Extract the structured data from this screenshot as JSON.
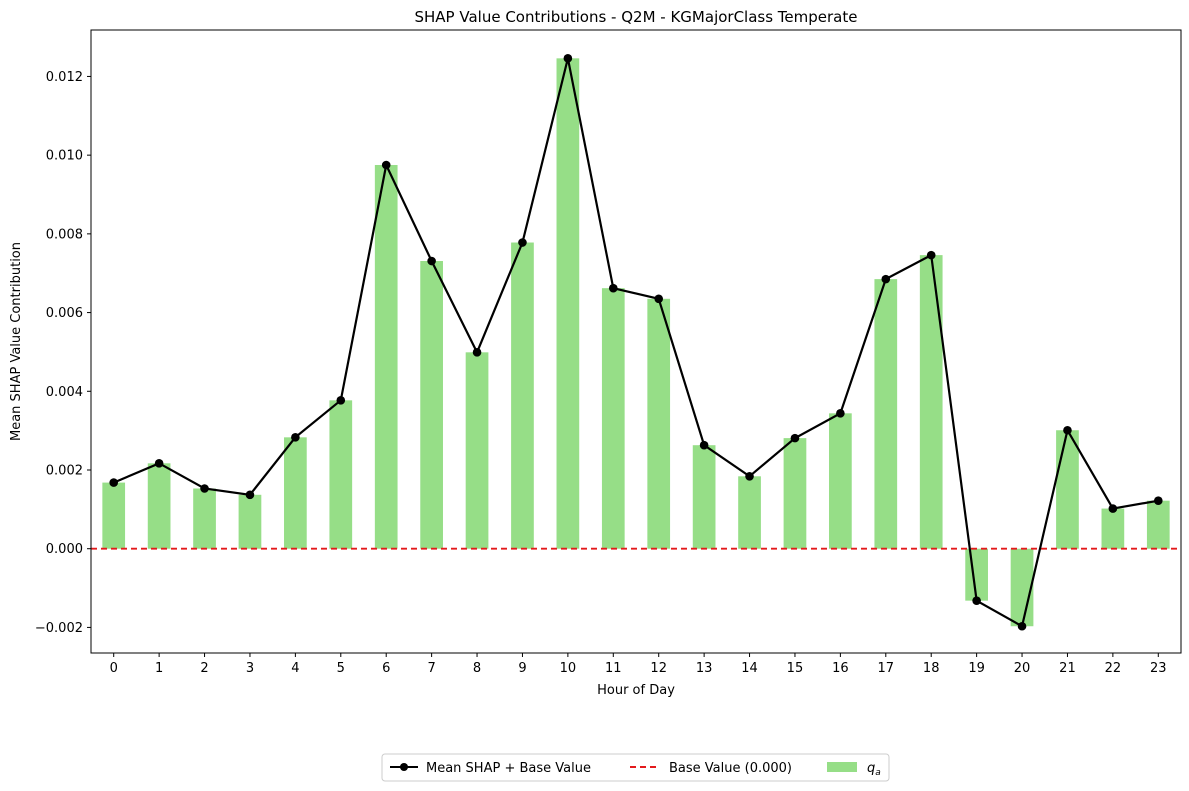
{
  "chart_data": {
    "type": "bar",
    "title": "SHAP Value Contributions - Q2M - KGMajorClass Temperate",
    "xlabel": "Hour of Day",
    "ylabel": "Mean SHAP Value Contribution",
    "categories": [
      "0",
      "1",
      "2",
      "3",
      "4",
      "5",
      "6",
      "7",
      "8",
      "9",
      "10",
      "11",
      "12",
      "13",
      "14",
      "15",
      "16",
      "17",
      "18",
      "19",
      "20",
      "21",
      "22",
      "23"
    ],
    "ylim": [
      -0.00265,
      0.01318
    ],
    "yticks": [
      -0.002,
      0.0,
      0.002,
      0.004,
      0.006,
      0.008,
      0.01,
      0.012
    ],
    "ytick_labels": [
      "−0.002",
      "0.000",
      "0.002",
      "0.004",
      "0.006",
      "0.008",
      "0.010",
      "0.012"
    ],
    "series": [
      {
        "name": "q_a",
        "legend_main": "q",
        "legend_sub": "a",
        "kind": "bar",
        "color": "#96de87",
        "values": [
          0.00168,
          0.00217,
          0.00153,
          0.00137,
          0.00283,
          0.00377,
          0.00975,
          0.00731,
          0.00499,
          0.00778,
          0.01246,
          0.00662,
          0.00635,
          0.00263,
          0.00184,
          0.00281,
          0.00344,
          0.00685,
          0.00746,
          -0.00132,
          -0.00197,
          0.00301,
          0.00102,
          0.00122
        ]
      },
      {
        "name": "Mean SHAP + Base Value",
        "kind": "line",
        "color": "#000000",
        "values": [
          0.00168,
          0.00217,
          0.00153,
          0.00137,
          0.00283,
          0.00377,
          0.00975,
          0.00731,
          0.00499,
          0.00778,
          0.01246,
          0.00662,
          0.00635,
          0.00263,
          0.00184,
          0.00281,
          0.00344,
          0.00685,
          0.00746,
          -0.00132,
          -0.00197,
          0.00301,
          0.00102,
          0.00122
        ]
      },
      {
        "name": "Base Value (0.000)",
        "kind": "hline",
        "color": "#e31a1c",
        "value": 0.0
      }
    ],
    "legend_placement": "bottom-center",
    "grid": false
  }
}
